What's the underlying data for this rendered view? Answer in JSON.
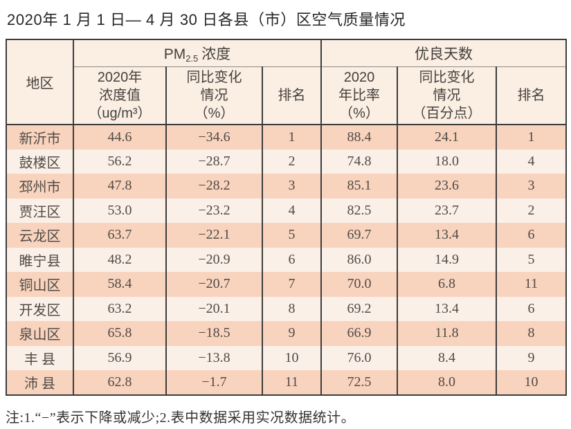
{
  "title": "2020年 1 月 1 日— 4 月 30 日各县（市）区空气质量情况",
  "table": {
    "region_header": "地区",
    "pm_group": {
      "prefix": "PM",
      "sub": "2.5",
      "suffix": "浓度"
    },
    "good_group_label": "优良天数",
    "subheaders": {
      "pm_value": "2020年\n浓度值\n（ug/m³）",
      "pm_change": "同比变化\n情况\n（%）",
      "pm_rank": "排名",
      "good_rate": "2020\n年比率\n（%）",
      "good_change": "同比变化\n情况\n（百分点）",
      "good_rank": "排名"
    },
    "rows": [
      {
        "region": "新沂市",
        "pm_value": "44.6",
        "pm_change": "−34.6",
        "pm_rank": "1",
        "good_rate": "88.4",
        "good_change": "24.1",
        "good_rank": "1"
      },
      {
        "region": "鼓楼区",
        "pm_value": "56.2",
        "pm_change": "−28.7",
        "pm_rank": "2",
        "good_rate": "74.8",
        "good_change": "18.0",
        "good_rank": "4"
      },
      {
        "region": "邳州市",
        "pm_value": "47.8",
        "pm_change": "−28.2",
        "pm_rank": "3",
        "good_rate": "85.1",
        "good_change": "23.6",
        "good_rank": "3"
      },
      {
        "region": "贾汪区",
        "pm_value": "53.0",
        "pm_change": "−23.2",
        "pm_rank": "4",
        "good_rate": "82.5",
        "good_change": "23.7",
        "good_rank": "2"
      },
      {
        "region": "云龙区",
        "pm_value": "63.7",
        "pm_change": "−22.1",
        "pm_rank": "5",
        "good_rate": "69.7",
        "good_change": "13.4",
        "good_rank": "6"
      },
      {
        "region": "睢宁县",
        "pm_value": "48.2",
        "pm_change": "−20.9",
        "pm_rank": "6",
        "good_rate": "86.0",
        "good_change": "14.9",
        "good_rank": "5"
      },
      {
        "region": "铜山区",
        "pm_value": "58.4",
        "pm_change": "−20.7",
        "pm_rank": "7",
        "good_rate": "70.0",
        "good_change": "6.8",
        "good_rank": "11"
      },
      {
        "region": "开发区",
        "pm_value": "63.2",
        "pm_change": "−20.1",
        "pm_rank": "8",
        "good_rate": "69.2",
        "good_change": "13.4",
        "good_rank": "6"
      },
      {
        "region": "泉山区",
        "pm_value": "65.8",
        "pm_change": "−18.5",
        "pm_rank": "9",
        "good_rate": "66.9",
        "good_change": "11.8",
        "good_rank": "8"
      },
      {
        "region": "丰 县",
        "pm_value": "56.9",
        "pm_change": "−13.8",
        "pm_rank": "10",
        "good_rate": "76.0",
        "good_change": "8.4",
        "good_rank": "9"
      },
      {
        "region": "沛 县",
        "pm_value": "62.8",
        "pm_change": "−1.7",
        "pm_rank": "11",
        "good_rate": "72.5",
        "good_change": "8.0",
        "good_rank": "10"
      }
    ]
  },
  "note": "注:1.“−”表示下降或减少;2.表中数据采用实况数据统计。",
  "colors": {
    "row_salmon": "#f8d3bd",
    "row_light": "#fbf0e7",
    "header_bg": "#fbeee3",
    "border_dark": "#3c3c3c",
    "group_divider_gray": "#8f8b87",
    "text_dark": "#4e4a47"
  }
}
